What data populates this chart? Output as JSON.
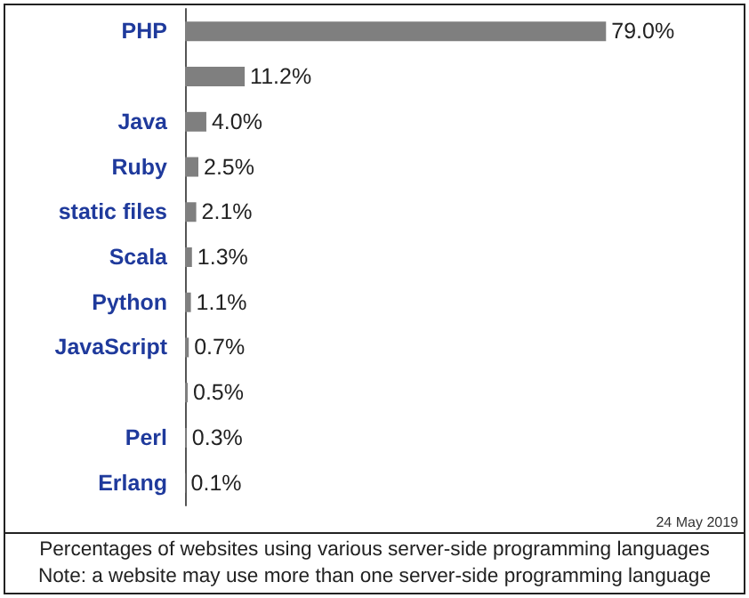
{
  "chart_data": {
    "type": "bar",
    "orientation": "horizontal",
    "categories": [
      "PHP",
      null,
      "Java",
      "Ruby",
      "static files",
      "Scala",
      "Python",
      "JavaScript",
      null,
      "Perl",
      "Erlang"
    ],
    "values": [
      79.0,
      11.2,
      4.0,
      2.5,
      2.1,
      1.3,
      1.1,
      0.7,
      0.5,
      0.3,
      0.1
    ],
    "value_labels": [
      "79.0%",
      "11.2%",
      "4.0%",
      "2.5%",
      "2.1%",
      "1.3%",
      "1.1%",
      "0.7%",
      "0.5%",
      "0.3%",
      "0.1%"
    ],
    "color": "#7f7f7f",
    "annotations": [
      "24 May 2019",
      "Percentages of websites using various server-side programming languages",
      "Note: a website may use more than one server-side programming language"
    ]
  }
}
